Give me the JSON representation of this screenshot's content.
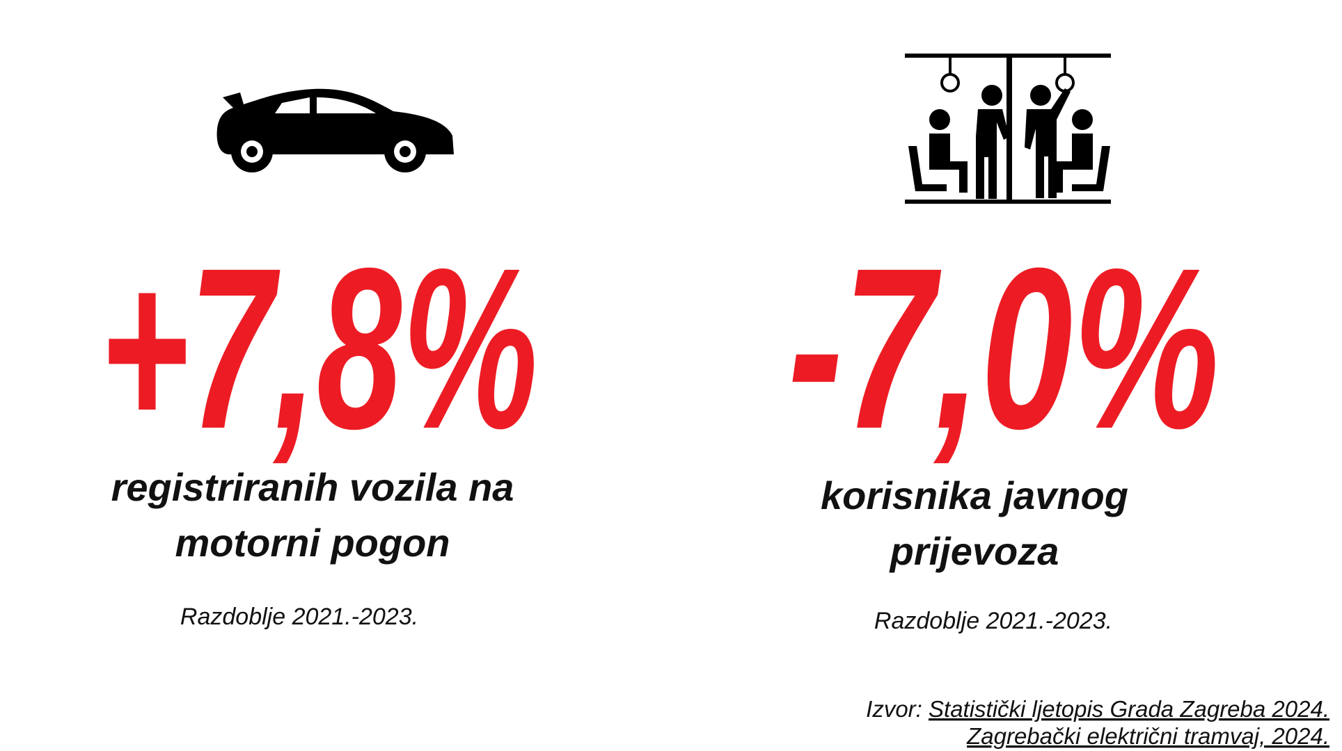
{
  "stats": [
    {
      "value": "+7,8%",
      "label_lines": [
        "registriranih vozila na",
        "motorni pogon"
      ],
      "period": "Razdoblje 2021.-2023."
    },
    {
      "value": "-7,0%",
      "label_lines": [
        "korisnika javnog",
        "prijevoza"
      ],
      "period": "Razdoblje 2021.-2023."
    }
  ],
  "source": {
    "prefix": "Izvor:",
    "lines": [
      "Statistički ljetopis Grada Zagreba 2024.",
      "Zagrebački električni tramvaj, 2024."
    ]
  }
}
